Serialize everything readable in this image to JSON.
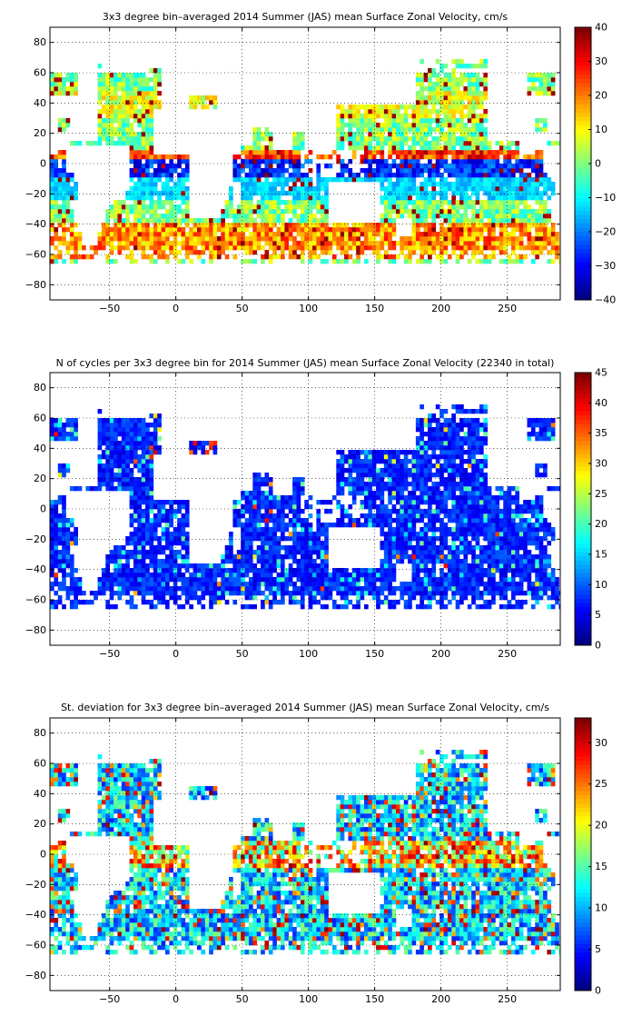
{
  "chart_data": [
    {
      "type": "heatmap",
      "title": "3x3 degree bin–averaged 2014 Summer (JAS) mean Surface Zonal Velocity, cm/s",
      "xlabel": "",
      "ylabel": "",
      "xlim": [
        -95,
        290
      ],
      "ylim": [
        -90,
        90
      ],
      "xticks": [
        -50,
        0,
        50,
        100,
        150,
        200,
        250
      ],
      "yticks": [
        -80,
        -60,
        -40,
        -20,
        0,
        20,
        40,
        60,
        80
      ],
      "grid": true,
      "bin_deg": 3,
      "colorbar": {
        "min": -40,
        "max": 40,
        "ticks": [
          -40,
          -30,
          -20,
          -10,
          0,
          10,
          20,
          30,
          40
        ],
        "colormap": "jet"
      },
      "field": "zonal"
    },
    {
      "type": "heatmap",
      "title": "N of cycles per 3x3 degree bin for 2014 Summer (JAS) mean Surface Zonal Velocity (22340 in total)",
      "xlabel": "",
      "ylabel": "",
      "xlim": [
        -95,
        290
      ],
      "ylim": [
        -90,
        90
      ],
      "xticks": [
        -50,
        0,
        50,
        100,
        150,
        200,
        250
      ],
      "yticks": [
        -80,
        -60,
        -40,
        -20,
        0,
        20,
        40,
        60,
        80
      ],
      "grid": true,
      "bin_deg": 3,
      "colorbar": {
        "min": 0,
        "max": 45,
        "ticks": [
          0,
          5,
          10,
          15,
          20,
          25,
          30,
          35,
          40,
          45
        ],
        "colormap": "jet"
      },
      "field": "count"
    },
    {
      "type": "heatmap",
      "title": "St. deviation for 3x3 degree bin–averaged 2014 Summer (JAS) mean Surface Zonal Velocity, cm/s",
      "xlabel": "",
      "ylabel": "",
      "xlim": [
        -95,
        290
      ],
      "ylim": [
        -90,
        90
      ],
      "xticks": [
        -50,
        0,
        50,
        100,
        150,
        200,
        250
      ],
      "yticks": [
        -80,
        -60,
        -40,
        -20,
        0,
        20,
        40,
        60,
        80
      ],
      "grid": true,
      "bin_deg": 3,
      "colorbar": {
        "min": 0,
        "max": 33,
        "ticks": [
          0,
          5,
          10,
          15,
          20,
          25,
          30
        ],
        "colormap": "jet"
      },
      "field": "std"
    }
  ]
}
